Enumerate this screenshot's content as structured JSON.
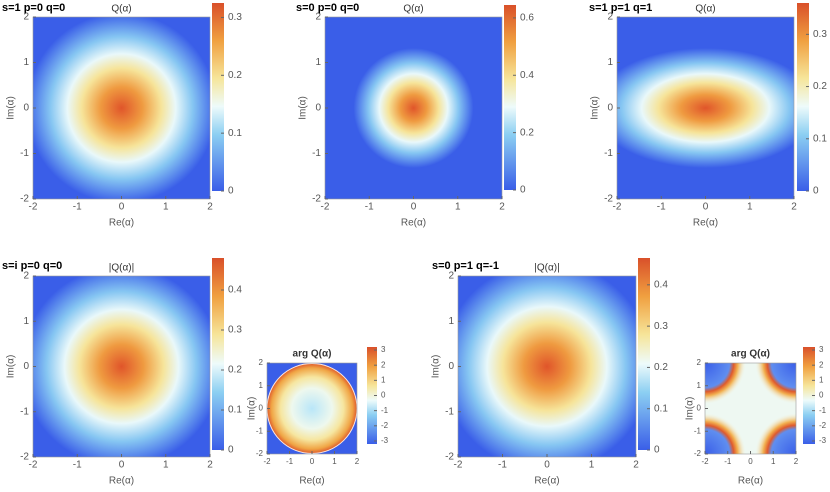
{
  "chart_data": [
    {
      "type": "heatmap",
      "panel_label": "s=1 p=0 q=0",
      "title": "Q(α)",
      "x_label": "Re(α)",
      "y_label": "Im(α)",
      "xlim": [
        -2,
        2
      ],
      "ylim": [
        -2,
        2
      ],
      "xticks": [
        -2,
        -1,
        0,
        1,
        2
      ],
      "yticks": [
        -2,
        -1,
        0,
        1,
        2
      ],
      "colorbar": {
        "lim": [
          0,
          0.325
        ],
        "ticks": [
          0,
          0.1,
          0.2,
          0.3
        ]
      }
    },
    {
      "type": "heatmap",
      "panel_label": "s=0 p=0 q=0",
      "title": "Q(α)",
      "x_label": "Re(α)",
      "y_label": "Im(α)",
      "xlim": [
        -2,
        2
      ],
      "ylim": [
        -2,
        2
      ],
      "xticks": [
        -2,
        -1,
        0,
        1,
        2
      ],
      "yticks": [
        -2,
        -1,
        0,
        1,
        2
      ],
      "colorbar": {
        "lim": [
          0,
          0.645
        ],
        "ticks": [
          0,
          0.2,
          0.4,
          0.6
        ]
      }
    },
    {
      "type": "heatmap",
      "panel_label": "s=1 p=1 q=1",
      "title": "Q(α)",
      "x_label": "Re(α)",
      "y_label": "Im(α)",
      "xlim": [
        -2,
        2
      ],
      "ylim": [
        -2,
        2
      ],
      "xticks": [
        -2,
        -1,
        0,
        1,
        2
      ],
      "yticks": [
        -2,
        -1,
        0,
        1,
        2
      ],
      "colorbar": {
        "lim": [
          0,
          0.36
        ],
        "ticks": [
          0,
          0.1,
          0.2,
          0.3
        ]
      }
    },
    {
      "type": "heatmap",
      "panel_label": "s=i p=0 q=0",
      "title": "|Q(α)|",
      "x_label": "Re(α)",
      "y_label": "Im(α)",
      "xlim": [
        -2,
        2
      ],
      "ylim": [
        -2,
        2
      ],
      "xticks": [
        -2,
        -1,
        0,
        1,
        2
      ],
      "yticks": [
        -2,
        -1,
        0,
        1,
        2
      ],
      "colorbar": {
        "lim": [
          0,
          0.48
        ],
        "ticks": [
          0,
          0.1,
          0.2,
          0.3,
          0.4
        ]
      }
    },
    {
      "type": "heatmap",
      "title": "arg Q(α)",
      "x_label": "Re(α)",
      "y_label": "Im(α)",
      "xlim": [
        -2,
        2
      ],
      "ylim": [
        -2,
        2
      ],
      "xticks": [
        -2,
        -1,
        0,
        1,
        2
      ],
      "yticks": [
        -2,
        -1,
        0,
        1,
        2
      ],
      "colorbar": {
        "lim": [
          -3.2,
          3.2
        ],
        "ticks": [
          -3,
          -2,
          -1,
          0,
          1,
          2,
          3
        ]
      }
    },
    {
      "type": "heatmap",
      "panel_label": "s=0 p=1 q=-1",
      "title": "|Q(α)|",
      "x_label": "Re(α)",
      "y_label": "Im(α)",
      "xlim": [
        -2,
        2
      ],
      "ylim": [
        -2,
        2
      ],
      "xticks": [
        -2,
        -1,
        0,
        1,
        2
      ],
      "yticks": [
        -2,
        -1,
        0,
        1,
        2
      ],
      "colorbar": {
        "lim": [
          0,
          0.465
        ],
        "ticks": [
          0,
          0.1,
          0.2,
          0.3,
          0.4
        ]
      }
    },
    {
      "type": "heatmap",
      "title": "arg Q(α)",
      "x_label": "Re(α)",
      "y_label": "Im(α)",
      "xlim": [
        -2,
        2
      ],
      "ylim": [
        -2,
        2
      ],
      "xticks": [
        -2,
        -1,
        0,
        1,
        2
      ],
      "yticks": [
        -2,
        -1,
        0,
        1,
        2
      ],
      "colorbar": {
        "lim": [
          -3.2,
          3.2
        ],
        "ticks": [
          -3,
          -2,
          -1,
          0,
          1,
          2,
          3
        ]
      }
    }
  ]
}
